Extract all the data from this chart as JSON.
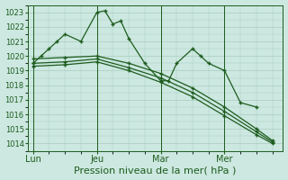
{
  "bg_color": "#cce8e0",
  "grid_color": "#aaccbf",
  "line_color": "#1e5c1e",
  "marker_color": "#1e5c1e",
  "xlabel": "Pression niveau de la mer( hPa )",
  "xlabel_fontsize": 8,
  "ylim": [
    1013.5,
    1023.5
  ],
  "yticks": [
    1014,
    1015,
    1016,
    1017,
    1018,
    1019,
    1020,
    1021,
    1022,
    1023
  ],
  "xtick_labels": [
    "Lun",
    "Jeu",
    "Mar",
    "Mer"
  ],
  "xtick_positions": [
    0,
    24,
    48,
    72
  ],
  "vline_positions": [
    0,
    24,
    48,
    72
  ],
  "total_hours": 96,
  "series": [
    {
      "x": [
        0,
        3,
        6,
        9,
        12,
        18,
        24,
        27,
        30,
        33,
        36,
        42,
        48,
        51,
        54,
        60,
        63,
        66,
        72,
        78,
        84
      ],
      "y": [
        1019.5,
        1020.0,
        1020.5,
        1021.0,
        1021.5,
        1021.0,
        1023.0,
        1023.1,
        1022.2,
        1022.4,
        1021.2,
        1019.5,
        1018.3,
        1018.3,
        1019.5,
        1020.5,
        1020.0,
        1019.5,
        1019.0,
        1016.8,
        1016.5
      ]
    },
    {
      "x": [
        0,
        12,
        24,
        36,
        48,
        60,
        72,
        84,
        90
      ],
      "y": [
        1019.8,
        1019.9,
        1020.0,
        1019.5,
        1018.8,
        1017.8,
        1016.5,
        1015.0,
        1014.2
      ]
    },
    {
      "x": [
        0,
        12,
        24,
        36,
        48,
        60,
        72,
        84,
        90
      ],
      "y": [
        1019.5,
        1019.6,
        1019.8,
        1019.2,
        1018.5,
        1017.5,
        1016.2,
        1014.8,
        1014.1
      ]
    },
    {
      "x": [
        0,
        12,
        24,
        36,
        48,
        60,
        72,
        84,
        90
      ],
      "y": [
        1019.3,
        1019.4,
        1019.6,
        1019.0,
        1018.2,
        1017.2,
        1015.9,
        1014.6,
        1014.0
      ]
    }
  ],
  "xlim": [
    -2,
    94
  ]
}
